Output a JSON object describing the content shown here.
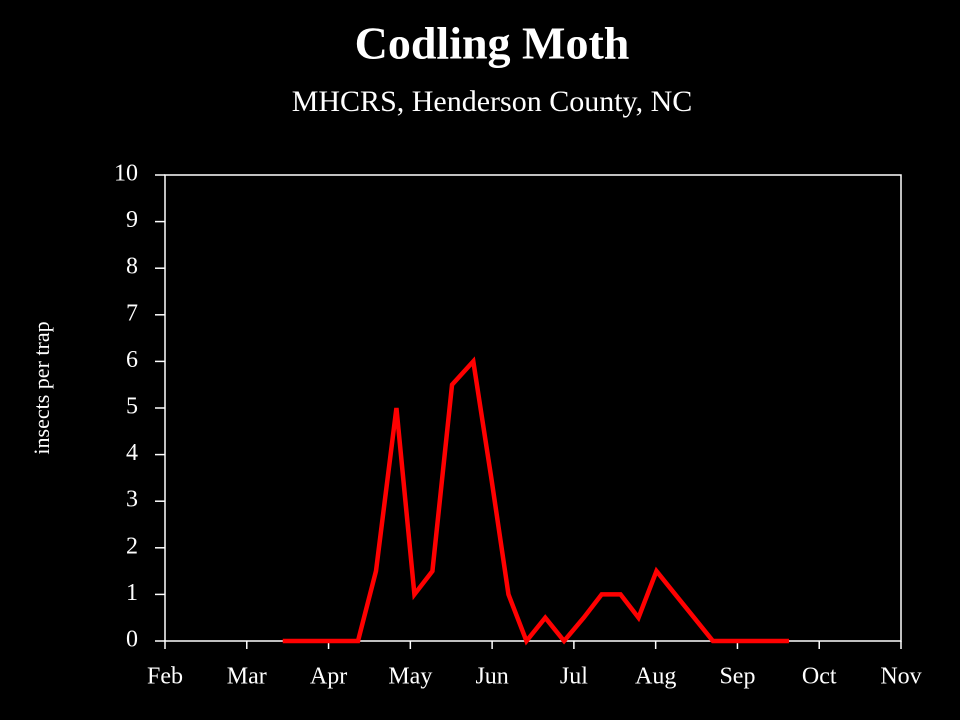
{
  "chart_data": {
    "type": "line",
    "title": "Codling Moth",
    "subtitle": "MHCRS, Henderson County, NC",
    "y_label": "insects per trap",
    "x": [
      3.44,
      3.68,
      3.9,
      4.13,
      4.36,
      4.58,
      4.83,
      5.05,
      5.27,
      5.51,
      5.77,
      5.99,
      6.2,
      6.42,
      6.65,
      6.88,
      7.12,
      7.34,
      7.57,
      7.79,
      8.01,
      8.24,
      8.47,
      8.7,
      8.93,
      9.16,
      9.39,
      9.63
    ],
    "series": [
      {
        "color": "#ff0000",
        "values": [
          0,
          0,
          0,
          0,
          0,
          1.5,
          5,
          1,
          1.5,
          5.5,
          6,
          3.5,
          1,
          0,
          0.5,
          0,
          0.5,
          1,
          1,
          0.5,
          1.5,
          1,
          0.5,
          0,
          0,
          0,
          0,
          0
        ]
      }
    ],
    "xlim": [
      2,
      11
    ],
    "xticks": [
      {
        "value": 2,
        "label": "Feb"
      },
      {
        "value": 3,
        "label": "Mar"
      },
      {
        "value": 4,
        "label": "Apr"
      },
      {
        "value": 5,
        "label": "May"
      },
      {
        "value": 6,
        "label": "Jun"
      },
      {
        "value": 7,
        "label": "Jul"
      },
      {
        "value": 8,
        "label": "Aug"
      },
      {
        "value": 9,
        "label": "Sep"
      },
      {
        "value": 10,
        "label": "Oct"
      },
      {
        "value": 11,
        "label": "Nov"
      }
    ],
    "ylim": [
      0,
      10
    ],
    "yticks": [
      0,
      1,
      2,
      3,
      4,
      5,
      6,
      7,
      8,
      9,
      10
    ],
    "grid": false
  }
}
